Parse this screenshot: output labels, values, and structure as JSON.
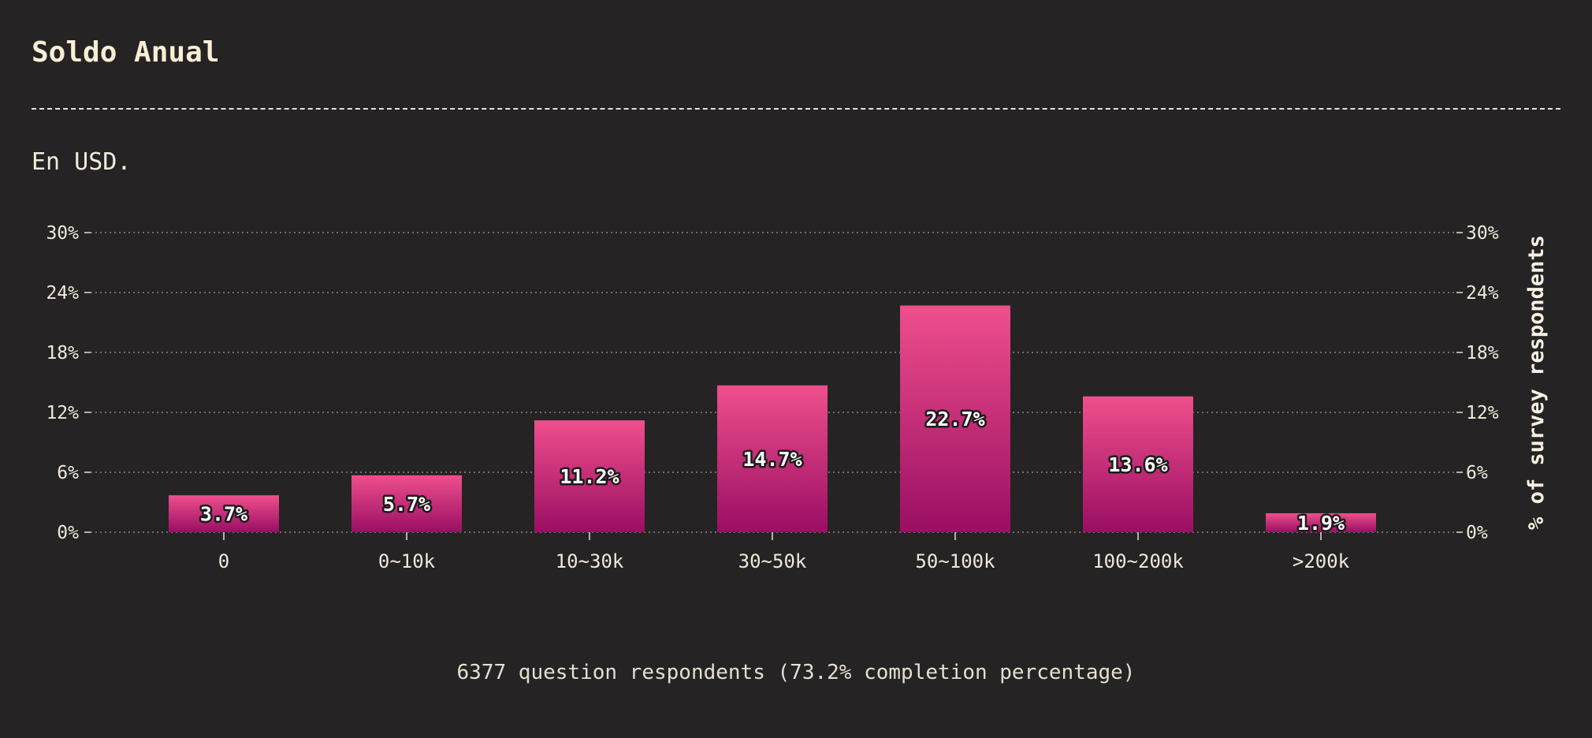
{
  "header": {
    "title": "Soldo Anual",
    "subtitle": "En USD."
  },
  "footer": {
    "note": "6377 question respondents (73.2% completion percentage)"
  },
  "colors": {
    "background": "#262324",
    "bar_top": "#ef4f8c",
    "bar_bottom": "#9a0e63",
    "grid": "#8a8585"
  },
  "chart_data": {
    "type": "bar",
    "categories": [
      "0",
      "0~10k",
      "10~30k",
      "30~50k",
      "50~100k",
      "100~200k",
      ">200k"
    ],
    "values": [
      3.7,
      5.7,
      11.2,
      14.7,
      22.7,
      13.6,
      1.9
    ],
    "value_labels": [
      "3.7%",
      "5.7%",
      "11.2%",
      "14.7%",
      "22.7%",
      "13.6%",
      "1.9%"
    ],
    "ylim": [
      0,
      30
    ],
    "yticks": [
      0,
      6,
      12,
      18,
      24,
      30
    ],
    "ytick_labels": [
      "0%",
      "6%",
      "12%",
      "18%",
      "24%",
      "30%"
    ],
    "ylabel": "% of survey respondents",
    "grid": true,
    "legend": false
  }
}
